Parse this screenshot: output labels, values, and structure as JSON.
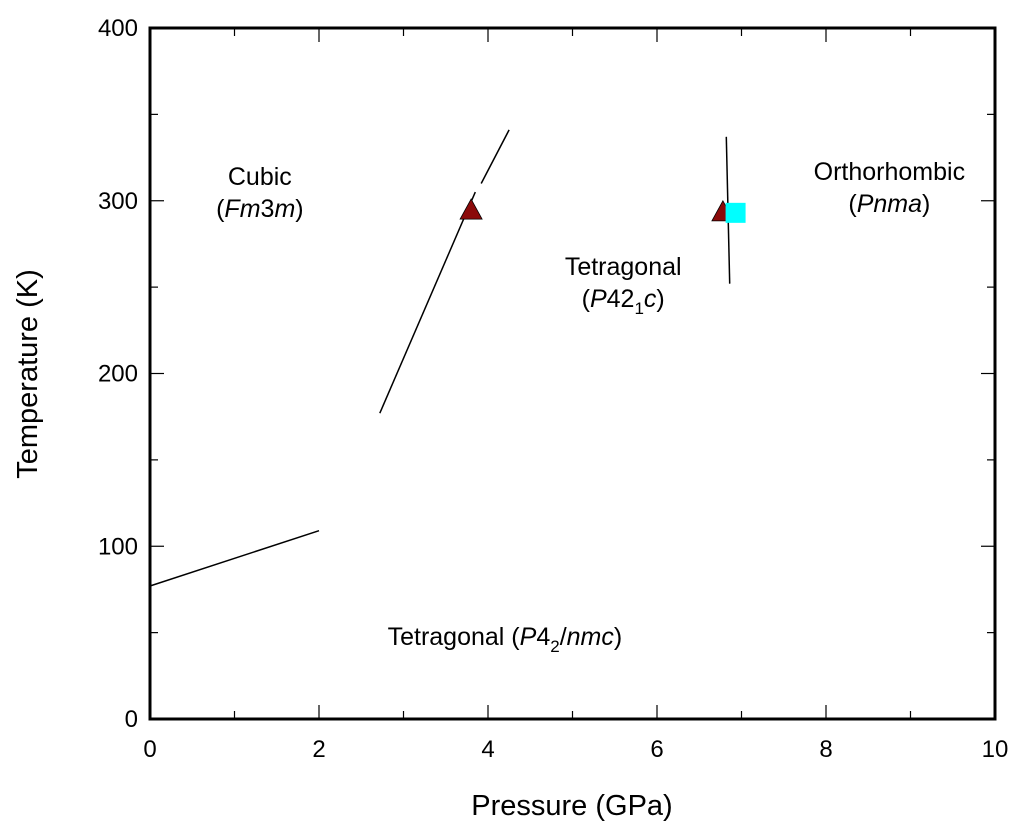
{
  "chart_data": {
    "type": "scatter",
    "title": "",
    "xlabel": "Pressure (GPa)",
    "ylabel": "Temperature (K)",
    "xlim": [
      0,
      10
    ],
    "ylim": [
      0,
      400
    ],
    "x_ticks": [
      0,
      2,
      4,
      6,
      8,
      10
    ],
    "x_tick_labels": [
      "0",
      "2",
      "4",
      "6",
      "8",
      "10"
    ],
    "y_ticks": [
      0,
      100,
      200,
      300,
      400
    ],
    "y_tick_labels": [
      "0",
      "100",
      "200",
      "300",
      "400"
    ],
    "x_minor_step": 1,
    "y_minor_step": 50,
    "grid": false,
    "phase_boundaries": [
      {
        "id": "boundary-low",
        "points": [
          [
            0,
            77
          ],
          [
            2,
            109
          ]
        ]
      },
      {
        "id": "boundary-cubic-a",
        "points": [
          [
            2.72,
            177
          ],
          [
            3.85,
            305
          ]
        ]
      },
      {
        "id": "boundary-cubic-b",
        "points": [
          [
            3.92,
            310
          ],
          [
            4.25,
            341
          ]
        ]
      },
      {
        "id": "boundary-ortho",
        "points": [
          [
            6.82,
            337
          ],
          [
            6.86,
            252
          ]
        ]
      }
    ],
    "series": [
      {
        "marker": "triangle",
        "color": "#8b0a0a",
        "points": [
          [
            3.8,
            294
          ],
          [
            6.78,
            293
          ]
        ]
      },
      {
        "marker": "square",
        "color": "#00ffff",
        "points": [
          [
            6.93,
            293
          ]
        ]
      }
    ],
    "annotations": [
      {
        "id": "cubic",
        "x": 1.3,
        "y": 305,
        "lines": [
          [
            {
              "t": "Cubic"
            }
          ],
          [
            {
              "t": "("
            },
            {
              "t": "Fm",
              "i": true
            },
            {
              "t": "3"
            },
            {
              "t": "m",
              "i": true
            },
            {
              "t": ")"
            }
          ]
        ]
      },
      {
        "id": "tetragonal-p421c",
        "x": 5.6,
        "y": 253,
        "lines": [
          [
            {
              "t": "Tetragonal"
            }
          ],
          [
            {
              "t": "("
            },
            {
              "t": "P",
              "i": true
            },
            {
              "t": "42"
            },
            {
              "t": "1",
              "sub": true
            },
            {
              "t": "c",
              "i": true
            },
            {
              "t": ")"
            }
          ]
        ]
      },
      {
        "id": "orthorhombic",
        "x": 8.75,
        "y": 308,
        "lines": [
          [
            {
              "t": "Orthorhombic"
            }
          ],
          [
            {
              "t": "("
            },
            {
              "t": "Pnma",
              "i": true
            },
            {
              "t": ")"
            }
          ]
        ]
      },
      {
        "id": "tetragonal-p42nmc",
        "x": 4.2,
        "y": 48,
        "lines": [
          [
            {
              "t": "Tetragonal ("
            },
            {
              "t": "P",
              "i": true
            },
            {
              "t": "4"
            },
            {
              "t": "2",
              "sub": true
            },
            {
              "t": "/"
            },
            {
              "t": "nmc",
              "i": true
            },
            {
              "t": ")"
            }
          ]
        ]
      }
    ]
  }
}
